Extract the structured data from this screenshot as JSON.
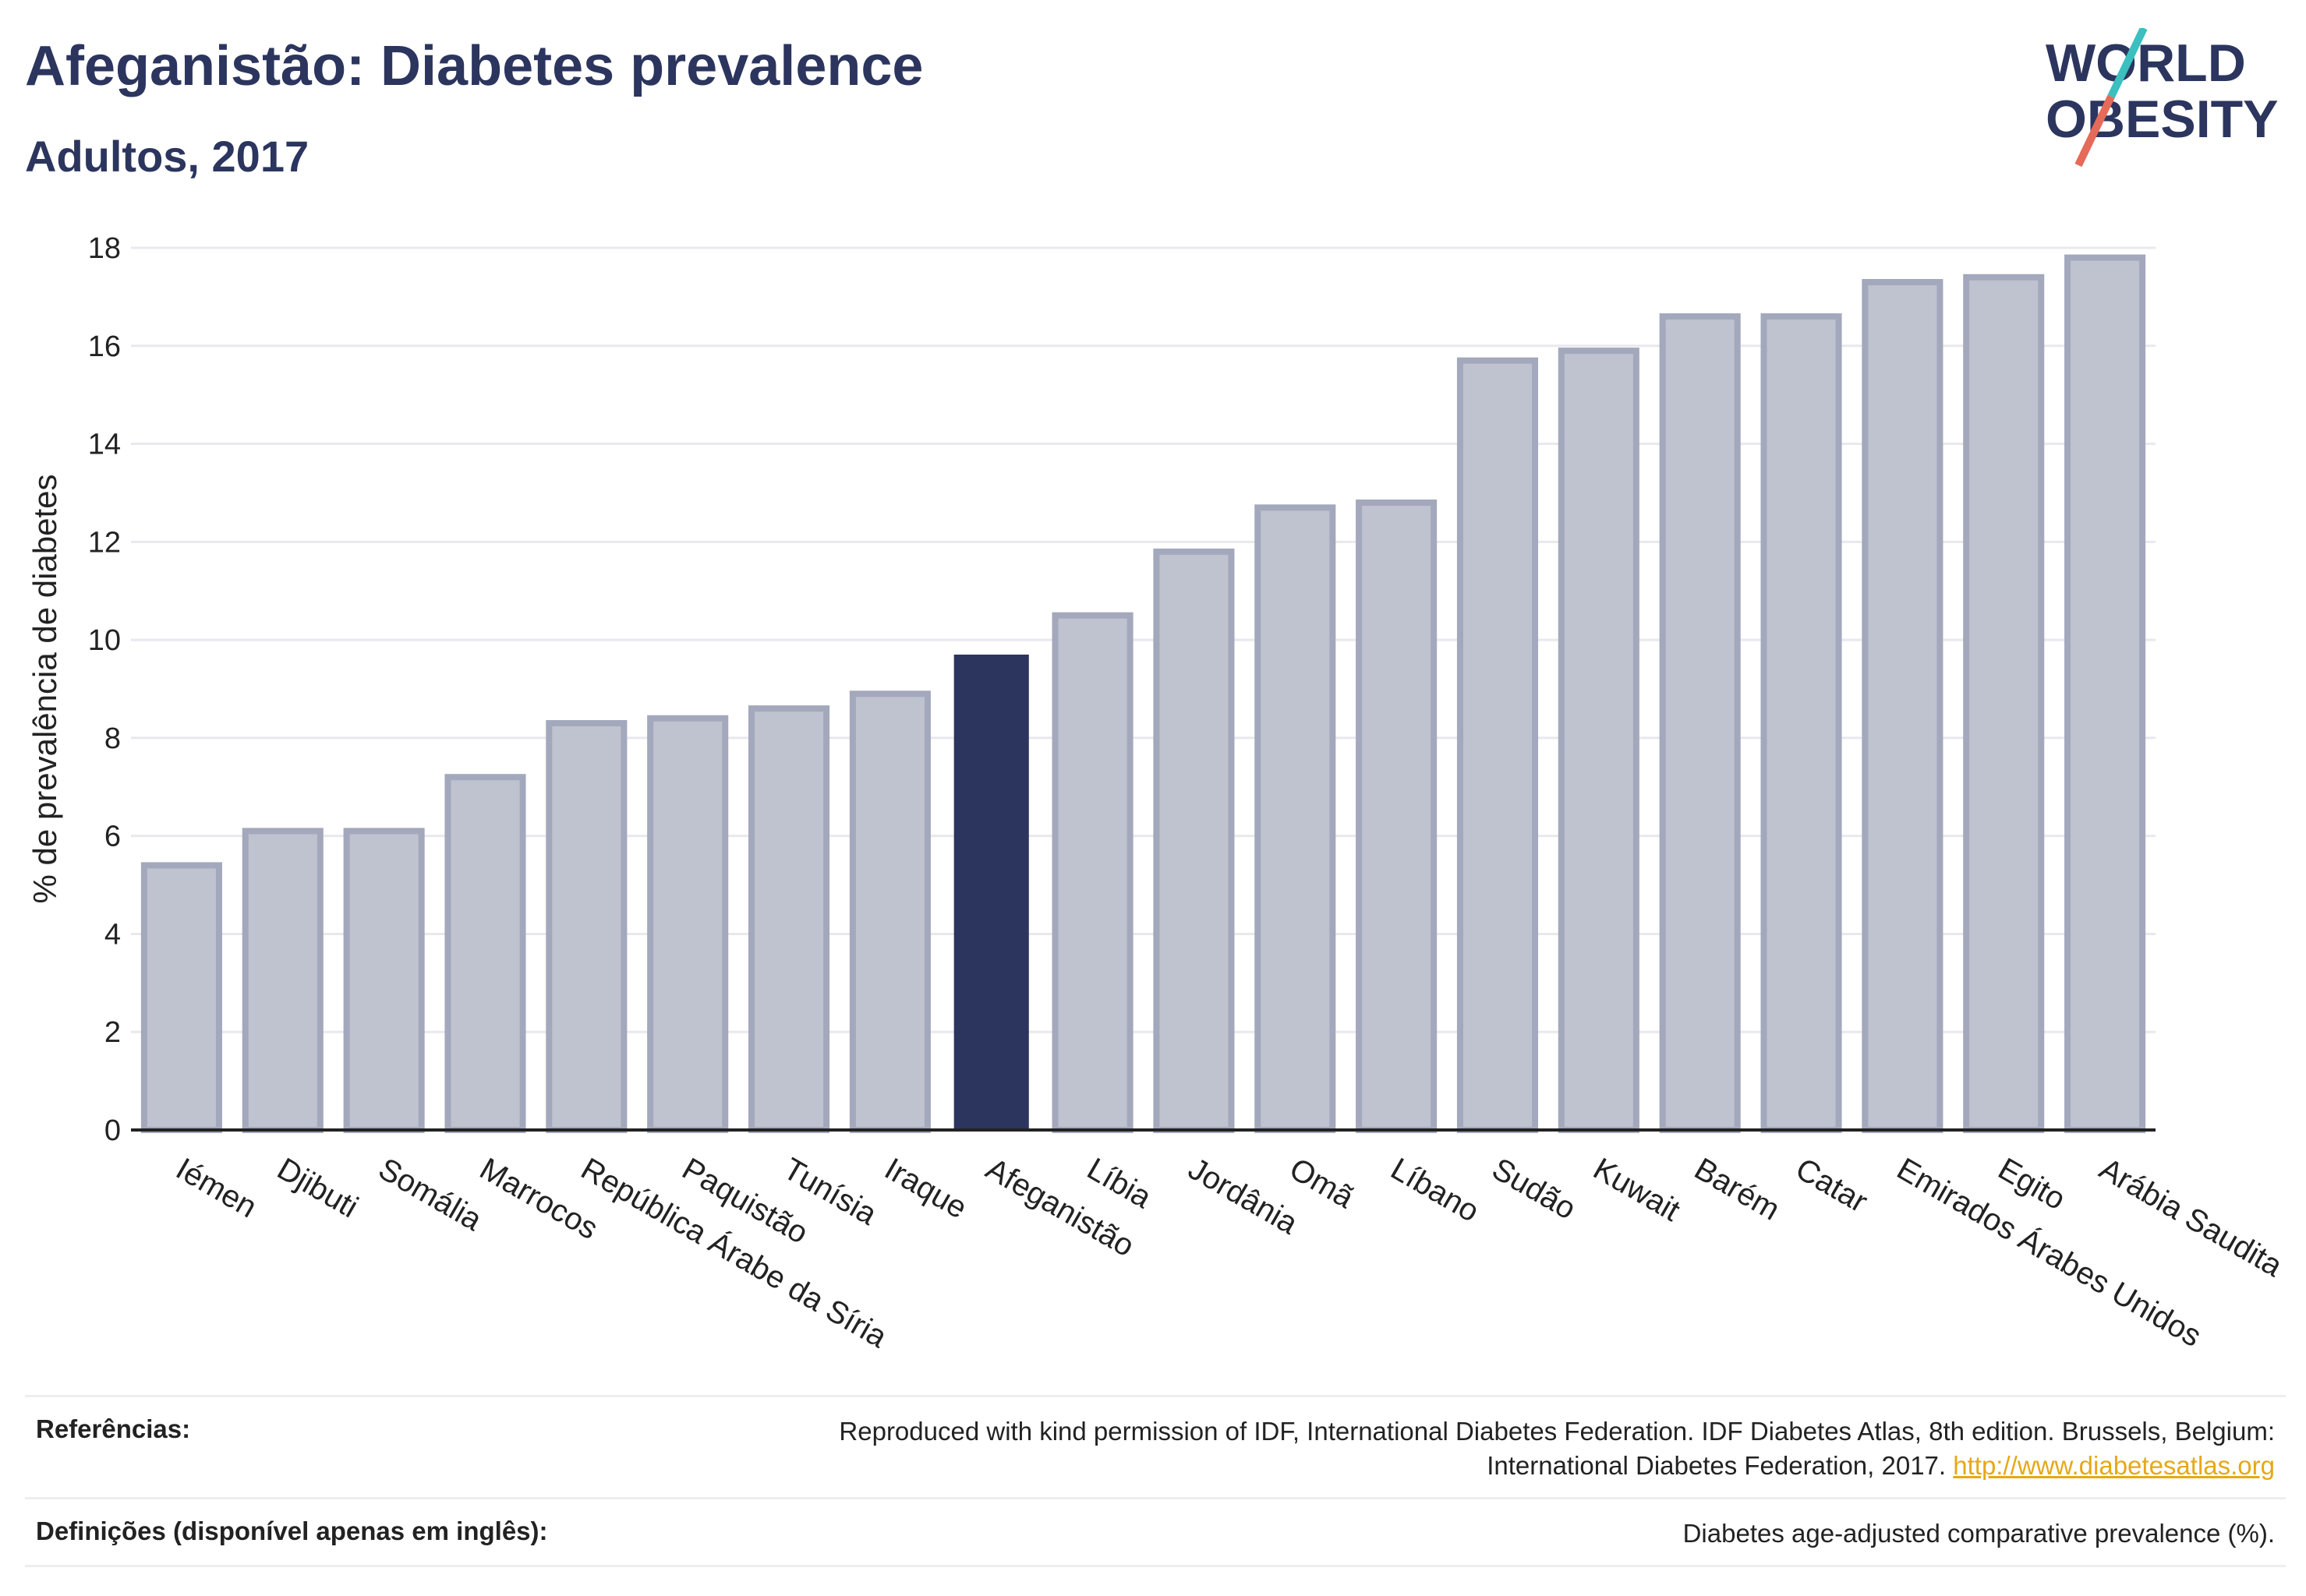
{
  "header": {
    "title": "Afeganistão: Diabetes prevalence",
    "subtitle": "Adultos, 2017"
  },
  "logo": {
    "line1": "WORLD",
    "line2": "OBESITY"
  },
  "chart_data": {
    "type": "bar",
    "ylabel": "% de prevalência de diabetes",
    "ylim": [
      0,
      18
    ],
    "yticks": [
      0,
      2,
      4,
      6,
      8,
      10,
      12,
      14,
      16,
      18
    ],
    "grid": true,
    "highlight": "Afeganistão",
    "categories": [
      "Iémen",
      "Djibuti",
      "Somália",
      "Marrocos",
      "República Árabe da Síria",
      "Paquistão",
      "Tunísia",
      "Iraque",
      "Afeganistão",
      "Líbia",
      "Jordânia",
      "Omã",
      "Líbano",
      "Sudão",
      "Kuwait",
      "Barém",
      "Catar",
      "Emirados Árabes Unidos",
      "Egito",
      "Arábia Saudita"
    ],
    "values": [
      5.4,
      6.1,
      6.1,
      7.2,
      8.3,
      8.4,
      8.6,
      8.9,
      9.7,
      10.5,
      11.8,
      12.7,
      12.8,
      15.7,
      15.9,
      16.6,
      16.6,
      17.3,
      17.4,
      17.8
    ],
    "colors": {
      "highlight": "#2b355e",
      "other": "#bfc2cf",
      "other_border": "#a3a8bc",
      "grid": "#e8e8ee",
      "axis": "#222222"
    }
  },
  "references": {
    "refs_label": "Referências:",
    "refs_text_line1": "Reproduced with kind permission of IDF, International Diabetes Federation. IDF Diabetes Atlas, 8th edition. Brussels, Belgium:",
    "refs_text_line2": "International Diabetes Federation, 2017.",
    "refs_link": "http://www.diabetesatlas.org",
    "defs_label": "Definições (disponível apenas em inglês):",
    "defs_text": "Diabetes age-adjusted comparative prevalence (%)."
  }
}
